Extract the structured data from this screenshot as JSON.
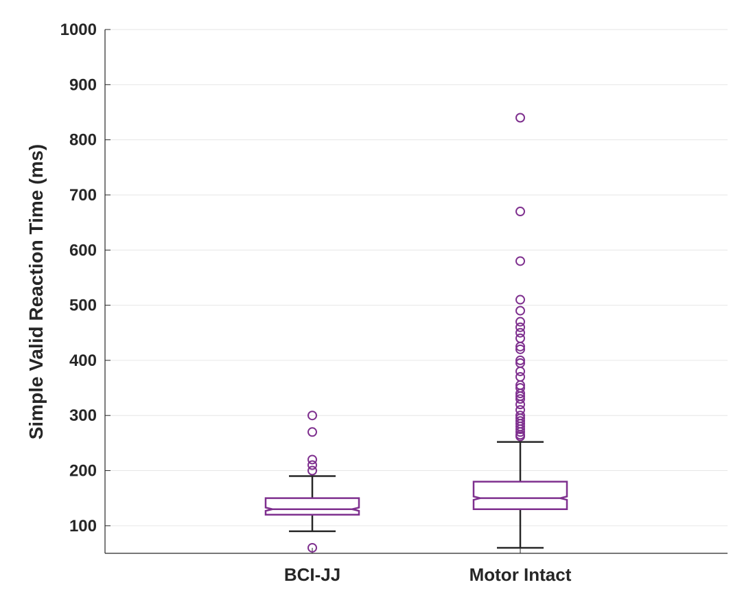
{
  "chart_data": {
    "type": "boxplot",
    "title": "",
    "xlabel": "",
    "ylabel": "Simple Valid Reaction Time (ms)",
    "ylim": [
      50,
      1000
    ],
    "yticks": [
      100,
      200,
      300,
      400,
      500,
      600,
      700,
      800,
      900,
      1000
    ],
    "grid": "horizontal",
    "notched": true,
    "box_color": "#7E2F8E",
    "whisker_color": "#262626",
    "outlier_color": "#7E2F8E",
    "categories": [
      "BCI-JJ",
      "Motor Intact"
    ],
    "boxes": [
      {
        "label": "BCI-JJ",
        "whisker_low": 90,
        "q1": 120,
        "median": 130,
        "q3": 150,
        "whisker_high": 190,
        "notch_low": 127,
        "notch_high": 133,
        "outliers": [
          60,
          200,
          210,
          220,
          270,
          300
        ]
      },
      {
        "label": "Motor Intact",
        "whisker_low": 60,
        "q1": 130,
        "median": 150,
        "q3": 180,
        "whisker_high": 252,
        "notch_low": 147,
        "notch_high": 153,
        "outliers": [
          262,
          265,
          270,
          275,
          280,
          285,
          290,
          295,
          300,
          310,
          320,
          330,
          335,
          340,
          350,
          355,
          370,
          380,
          395,
          400,
          420,
          425,
          440,
          450,
          460,
          470,
          490,
          510,
          580,
          670,
          840
        ]
      }
    ]
  }
}
